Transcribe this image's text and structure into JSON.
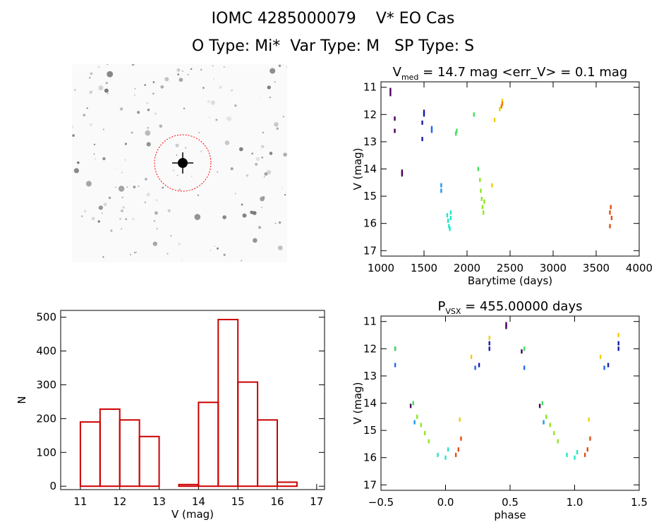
{
  "header": {
    "line1": "IOMC 4285000079    V* EO Cas",
    "line2": "O Type: Mi*  Var Type: M   SP Type: S"
  },
  "image_panel": {
    "description_icon": "finder-chart-image",
    "circle_color": "#ff0000"
  },
  "chart_data": [
    {
      "type": "scatter",
      "title_main": "V",
      "title_sub": "med",
      "title_rest": " = 14.7 mag <err_V> = 0.1 mag",
      "xlabel": "Barytime (days)",
      "ylabel": "V (mag)",
      "xlim": [
        1000,
        4000
      ],
      "ylim": [
        17.2,
        10.8
      ],
      "xticks": [
        1000,
        1500,
        2000,
        2500,
        3000,
        3500,
        4000
      ],
      "yticks": [
        11,
        12,
        13,
        14,
        15,
        16,
        17
      ],
      "series": [
        {
          "color": "#4b0060",
          "points": [
            [
              1110,
              11.1
            ],
            [
              1110,
              11.25
            ],
            [
              1160,
              12.15
            ],
            [
              1160,
              12.6
            ],
            [
              1245,
              14.1
            ],
            [
              1245,
              14.2
            ]
          ]
        },
        {
          "color": "#1a1aaa",
          "points": [
            [
              1480,
              12.3
            ],
            [
              1480,
              12.9
            ],
            [
              1500,
              12.0
            ],
            [
              1500,
              11.9
            ]
          ]
        },
        {
          "color": "#1a6aee",
          "points": [
            [
              1590,
              12.5
            ],
            [
              1590,
              12.6
            ]
          ]
        },
        {
          "color": "#1a9aee",
          "points": [
            [
              1700,
              14.6
            ],
            [
              1700,
              14.8
            ]
          ]
        },
        {
          "color": "#20e8c8",
          "points": [
            [
              1770,
              15.7
            ],
            [
              1780,
              15.9
            ],
            [
              1790,
              16.1
            ],
            [
              1800,
              16.2
            ],
            [
              1810,
              15.8
            ],
            [
              1810,
              15.6
            ]
          ]
        },
        {
          "color": "#40e060",
          "points": [
            [
              1870,
              12.7
            ],
            [
              1880,
              12.6
            ],
            [
              2080,
              12.0
            ],
            [
              2130,
              14.0
            ]
          ]
        },
        {
          "color": "#90e820",
          "points": [
            [
              2150,
              14.4
            ],
            [
              2160,
              14.8
            ],
            [
              2170,
              15.1
            ],
            [
              2180,
              15.4
            ],
            [
              2190,
              15.6
            ],
            [
              2200,
              15.2
            ]
          ]
        },
        {
          "color": "#f0d000",
          "points": [
            [
              2290,
              14.6
            ],
            [
              2320,
              12.2
            ],
            [
              2380,
              11.8
            ],
            [
              2410,
              11.5
            ]
          ]
        },
        {
          "color": "#f08000",
          "points": [
            [
              2400,
              11.7
            ],
            [
              2410,
              11.6
            ]
          ]
        },
        {
          "color": "#e05010",
          "points": [
            [
              3660,
              15.6
            ],
            [
              3660,
              16.1
            ],
            [
              3670,
              15.4
            ],
            [
              3680,
              15.8
            ]
          ]
        }
      ]
    },
    {
      "type": "bar",
      "xlabel": "V (mag)",
      "ylabel": "N",
      "xlim": [
        10.5,
        17.2
      ],
      "ylim": [
        -10,
        520
      ],
      "xticks": [
        11,
        12,
        13,
        14,
        15,
        16,
        17
      ],
      "yticks": [
        0,
        100,
        200,
        300,
        400,
        500
      ],
      "bin_width": 0.5,
      "bin_starts": [
        11.0,
        11.5,
        12.0,
        12.5,
        13.0,
        13.5,
        14.0,
        14.5,
        15.0,
        15.5,
        16.0
      ],
      "values": [
        190,
        228,
        196,
        147,
        0,
        5,
        248,
        493,
        308,
        196,
        12
      ],
      "color": "#cc0000"
    },
    {
      "type": "scatter",
      "title_main": "P",
      "title_sub": "VSX",
      "title_rest": " = 455.00000 days",
      "xlabel": "phase",
      "ylabel": "V (mag)",
      "xlim": [
        -0.5,
        1.5
      ],
      "ylim": [
        17.2,
        10.8
      ],
      "xticks": [
        -0.5,
        0.0,
        0.5,
        1.0,
        1.5
      ],
      "xticklabels": [
        "−0.5",
        "0.0",
        "0.5",
        "1.0",
        "1.5"
      ],
      "yticks": [
        11,
        12,
        13,
        14,
        15,
        16,
        17
      ],
      "series": [
        {
          "color": "#4b0060",
          "points": [
            [
              0.47,
              11.1
            ],
            [
              0.47,
              11.2
            ],
            [
              -0.39,
              12.0
            ],
            [
              0.59,
              12.1
            ],
            [
              -0.27,
              14.1
            ],
            [
              0.73,
              14.1
            ]
          ]
        },
        {
          "color": "#1a1aaa",
          "points": [
            [
              0.34,
              12.0
            ],
            [
              0.34,
              11.8
            ],
            [
              1.34,
              11.8
            ],
            [
              1.34,
              12.0
            ],
            [
              0.26,
              12.6
            ],
            [
              1.26,
              12.6
            ]
          ]
        },
        {
          "color": "#1a6aee",
          "points": [
            [
              -0.39,
              12.6
            ],
            [
              0.61,
              12.7
            ],
            [
              0.23,
              12.7
            ],
            [
              1.23,
              12.7
            ]
          ]
        },
        {
          "color": "#1a9aee",
          "points": [
            [
              -0.24,
              14.7
            ],
            [
              0.76,
              14.7
            ]
          ]
        },
        {
          "color": "#20e8c8",
          "points": [
            [
              -0.06,
              15.9
            ],
            [
              0.0,
              16.0
            ],
            [
              0.02,
              15.7
            ],
            [
              0.94,
              15.9
            ],
            [
              1.0,
              16.0
            ],
            [
              1.02,
              15.8
            ]
          ]
        },
        {
          "color": "#40e060",
          "points": [
            [
              -0.39,
              12.0
            ],
            [
              0.61,
              12.0
            ],
            [
              -0.25,
              14.0
            ],
            [
              0.75,
              14.0
            ]
          ]
        },
        {
          "color": "#90e820",
          "points": [
            [
              -0.22,
              14.5
            ],
            [
              -0.19,
              14.8
            ],
            [
              -0.16,
              15.1
            ],
            [
              -0.13,
              15.4
            ],
            [
              0.78,
              14.5
            ],
            [
              0.81,
              14.8
            ],
            [
              0.84,
              15.1
            ],
            [
              0.87,
              15.4
            ]
          ]
        },
        {
          "color": "#f0d000",
          "points": [
            [
              0.11,
              14.6
            ],
            [
              1.11,
              14.6
            ],
            [
              0.2,
              12.3
            ],
            [
              1.2,
              12.3
            ],
            [
              0.34,
              11.6
            ],
            [
              1.34,
              11.5
            ]
          ]
        },
        {
          "color": "#e05010",
          "points": [
            [
              0.08,
              15.9
            ],
            [
              0.1,
              15.7
            ],
            [
              0.12,
              15.3
            ],
            [
              1.08,
              15.9
            ],
            [
              1.1,
              15.7
            ],
            [
              1.12,
              15.3
            ]
          ]
        }
      ]
    }
  ]
}
